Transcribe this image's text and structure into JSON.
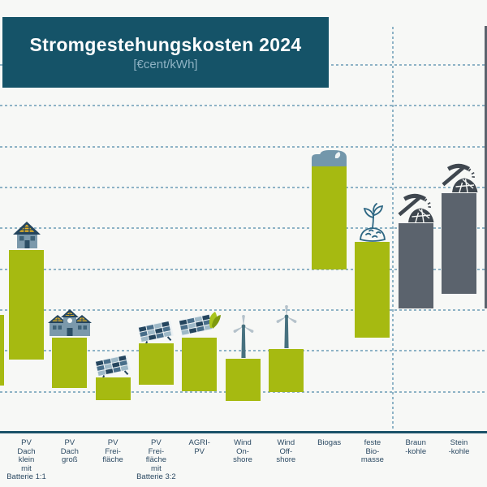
{
  "header": {
    "title": "Stromgestehungskosten 2024",
    "unit_label": "[€cent/kWh]"
  },
  "colors": {
    "renewable_bar": "#a6ba11",
    "fossil_bar": "#5b636d",
    "title_bg": "#155368",
    "title_text": "#ffffff",
    "subtitle_text": "#8fb3c4",
    "gridline": "#7ba7bd",
    "axis": "#1b5269",
    "label_text": "#2c4a63"
  },
  "chart_data": {
    "type": "bar",
    "subtype": "floating-range-bars",
    "title": "Stromgestehungskosten 2024",
    "unit": "€cent/kWh",
    "ylabel": "€cent/kWh",
    "ylim": [
      0,
      50
    ],
    "gridline_step": 5,
    "grid": "horizontal-dashed",
    "legend_position": "none",
    "separator_between": [
      "feste Biomasse",
      "Braunkohle"
    ],
    "categories": [
      {
        "id": "clipped-left-bar",
        "label": "",
        "label_lines": [],
        "min": 5.8,
        "max": 14.4,
        "group": "renewable",
        "icon": null,
        "clipped": "left"
      },
      {
        "id": "pv-dach-klein-batterie",
        "label": "PV Dach klein mit Batterie 1:1",
        "label_lines": [
          "PV",
          "Dach",
          "klein",
          "mit",
          "Batterie 1:1"
        ],
        "min": 8.9,
        "max": 22.3,
        "group": "renewable",
        "icon": "house-solar",
        "clipped": null
      },
      {
        "id": "pv-dach-gross",
        "label": "PV Dach groß",
        "label_lines": [
          "PV",
          "Dach",
          "groß"
        ],
        "min": 5.5,
        "max": 11.6,
        "group": "renewable",
        "icon": "building-solar",
        "clipped": null
      },
      {
        "id": "pv-freiflaeche",
        "label": "PV Freifläche",
        "label_lines": [
          "PV",
          "Frei-",
          "fläche"
        ],
        "min": 4.0,
        "max": 6.8,
        "group": "renewable",
        "icon": "solar-panel",
        "clipped": null
      },
      {
        "id": "pv-freiflaeche-batterie",
        "label": "PV Freifläche mit Batterie 3:2",
        "label_lines": [
          "PV",
          "Frei-",
          "fläche",
          "mit",
          "Batterie 3:2"
        ],
        "min": 5.9,
        "max": 10.9,
        "group": "renewable",
        "icon": "solar-panel",
        "clipped": null
      },
      {
        "id": "agri-pv",
        "label": "AGRI-PV",
        "label_lines": [
          "AGRI-",
          "PV"
        ],
        "min": 5.1,
        "max": 11.6,
        "group": "renewable",
        "icon": "solar-panel-leaf",
        "clipped": null
      },
      {
        "id": "wind-onshore",
        "label": "Wind Onshore",
        "label_lines": [
          "Wind",
          "On-",
          "shore"
        ],
        "min": 3.9,
        "max": 9.0,
        "group": "renewable",
        "icon": "wind-turbine",
        "clipped": null
      },
      {
        "id": "wind-offshore",
        "label": "Wind Offshore",
        "label_lines": [
          "Wind",
          "Off-",
          "shore"
        ],
        "min": 5.0,
        "max": 10.2,
        "group": "renewable",
        "icon": "wind-turbine",
        "clipped": null
      },
      {
        "id": "biogas",
        "label": "Biogas",
        "label_lines": [
          "Biogas"
        ],
        "min": 20.0,
        "max": 32.6,
        "group": "renewable",
        "icon": "biogas-tank",
        "clipped": null
      },
      {
        "id": "feste-biomasse",
        "label": "feste Biomasse",
        "label_lines": [
          "feste",
          "Bio-",
          "masse"
        ],
        "min": 11.6,
        "max": 23.3,
        "group": "renewable",
        "icon": "biomass-sprout",
        "clipped": null
      },
      {
        "id": "braunkohle",
        "label": "Braunkohle",
        "label_lines": [
          "Braun",
          "-kohle"
        ],
        "min": 15.2,
        "max": 25.6,
        "group": "fossil",
        "icon": "coal-pickaxe",
        "clipped": null
      },
      {
        "id": "steinkohle",
        "label": "Steinkohle",
        "label_lines": [
          "Stein",
          "-kohle"
        ],
        "min": 17.0,
        "max": 29.3,
        "group": "fossil",
        "icon": "coal-pickaxe",
        "clipped": null
      },
      {
        "id": "clipped-right-bar",
        "label": "",
        "label_lines": [],
        "min": 15.2,
        "max": 49.8,
        "group": "fossil",
        "icon": null,
        "clipped": "right"
      }
    ]
  }
}
